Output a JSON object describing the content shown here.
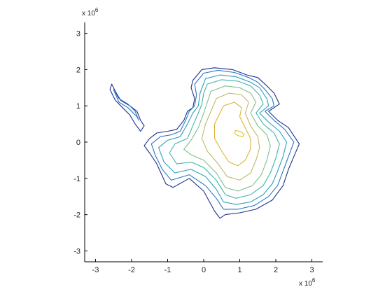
{
  "chart_data": {
    "type": "contour",
    "xlim": [
      -3300000.0,
      3300000.0
    ],
    "ylim": [
      -3300000.0,
      3300000.0
    ],
    "x_ticks": [
      -3000000.0,
      -2000000.0,
      -1000000.0,
      0,
      1000000.0,
      2000000.0,
      3000000.0
    ],
    "y_ticks": [
      -3000000.0,
      -2000000.0,
      -1000000.0,
      0,
      1000000.0,
      2000000.0,
      3000000.0
    ],
    "x_tick_labels": [
      "-3",
      "-2",
      "-1",
      "0",
      "1",
      "2",
      "3"
    ],
    "y_tick_labels": [
      "-3",
      "-2",
      "-1",
      "0",
      "1",
      "2",
      "3"
    ],
    "x_exponent": {
      "base": "x 10",
      "power": "6"
    },
    "y_exponent": {
      "base": "x 10",
      "power": "6"
    },
    "grid": false,
    "contours": [
      {
        "level_index": 0,
        "color": "#1f2f8f",
        "points": [
          [
            -50000.0,
            2000000.0
          ],
          [
            300000.0,
            2050000.0
          ],
          [
            800000.0,
            2000000.0
          ],
          [
            1200000.0,
            1850000.0
          ],
          [
            1500000.0,
            1780000.0
          ],
          [
            1750000.0,
            1550000.0
          ],
          [
            1950000.0,
            1350000.0
          ],
          [
            2100000.0,
            1050000.0
          ],
          [
            1800000.0,
            850000.0
          ],
          [
            2050000.0,
            600000.0
          ],
          [
            2350000.0,
            400000.0
          ],
          [
            2650000.0,
            -50000.0
          ],
          [
            2500000.0,
            -400000.0
          ],
          [
            2350000.0,
            -750000.0
          ],
          [
            2200000.0,
            -1200000.0
          ],
          [
            1900000.0,
            -1600000.0
          ],
          [
            1450000.0,
            -1850000.0
          ],
          [
            1000000.0,
            -1950000.0
          ],
          [
            600000.0,
            -2000000.0
          ],
          [
            450000.0,
            -2100000.0
          ],
          [
            300000.0,
            -1900000.0
          ],
          [
            0.0,
            -1350000.0
          ],
          [
            -400000.0,
            -1000000.0
          ],
          [
            -850000.0,
            -1250000.0
          ],
          [
            -1050000.0,
            -1150000.0
          ],
          [
            -1300000.0,
            -600000.0
          ],
          [
            -1500000.0,
            -300000.0
          ],
          [
            -1650000.0,
            -100000.0
          ],
          [
            -1500000.0,
            100000.0
          ],
          [
            -1300000.0,
            250000.0
          ],
          [
            -1000000.0,
            300000.0
          ],
          [
            -750000.0,
            350000.0
          ],
          [
            -550000.0,
            600000.0
          ],
          [
            -450000.0,
            850000.0
          ],
          [
            -300000.0,
            950000.0
          ],
          [
            -250000.0,
            1200000.0
          ],
          [
            -350000.0,
            1500000.0
          ],
          [
            -300000.0,
            1700000.0
          ],
          [
            -50000.0,
            2000000.0
          ]
        ]
      },
      {
        "level_index": 1,
        "color": "#2c78c0",
        "points": [
          [
            0.0,
            1900000.0
          ],
          [
            400000.0,
            1980000.0
          ],
          [
            850000.0,
            1920000.0
          ],
          [
            1250000.0,
            1780000.0
          ],
          [
            1500000.0,
            1650000.0
          ],
          [
            1700000.0,
            1450000.0
          ],
          [
            1900000.0,
            1200000.0
          ],
          [
            1950000.0,
            1000000.0
          ],
          [
            1700000.0,
            850000.0
          ],
          [
            1950000.0,
            600000.0
          ],
          [
            2250000.0,
            350000.0
          ],
          [
            2500000.0,
            0.0
          ],
          [
            2350000.0,
            -400000.0
          ],
          [
            2200000.0,
            -800000.0
          ],
          [
            2050000.0,
            -1200000.0
          ],
          [
            1800000.0,
            -1500000.0
          ],
          [
            1400000.0,
            -1750000.0
          ],
          [
            950000.0,
            -1850000.0
          ],
          [
            550000.0,
            -1850000.0
          ],
          [
            350000.0,
            -1550000.0
          ],
          [
            50000.0,
            -1200000.0
          ],
          [
            -400000.0,
            -900000.0
          ],
          [
            -900000.0,
            -1050000.0
          ],
          [
            -1150000.0,
            -750000.0
          ],
          [
            -1350000.0,
            -350000.0
          ],
          [
            -1450000.0,
            -50000.0
          ],
          [
            -1200000.0,
            150000.0
          ],
          [
            -900000.0,
            200000.0
          ],
          [
            -650000.0,
            300000.0
          ],
          [
            -500000.0,
            600000.0
          ],
          [
            -400000.0,
            850000.0
          ],
          [
            -250000.0,
            1000000.0
          ],
          [
            -200000.0,
            1300000.0
          ],
          [
            -250000.0,
            1600000.0
          ],
          [
            0.0,
            1900000.0
          ]
        ]
      },
      {
        "level_index": 2,
        "color": "#2aa0c0",
        "points": [
          [
            50000.0,
            1750000.0
          ],
          [
            450000.0,
            1850000.0
          ],
          [
            900000.0,
            1800000.0
          ],
          [
            1300000.0,
            1650000.0
          ],
          [
            1550000.0,
            1500000.0
          ],
          [
            1750000.0,
            1200000.0
          ],
          [
            1800000.0,
            1000000.0
          ],
          [
            1550000.0,
            800000.0
          ],
          [
            1800000.0,
            550000.0
          ],
          [
            2100000.0,
            300000.0
          ],
          [
            2300000.0,
            0.0
          ],
          [
            2200000.0,
            -400000.0
          ],
          [
            2050000.0,
            -800000.0
          ],
          [
            1900000.0,
            -1150000.0
          ],
          [
            1650000.0,
            -1450000.0
          ],
          [
            1300000.0,
            -1650000.0
          ],
          [
            900000.0,
            -1720000.0
          ],
          [
            550000.0,
            -1650000.0
          ],
          [
            350000.0,
            -1300000.0
          ],
          [
            50000.0,
            -950000.0
          ],
          [
            -350000.0,
            -750000.0
          ],
          [
            -800000.0,
            -850000.0
          ],
          [
            -1100000.0,
            -550000.0
          ],
          [
            -1250000.0,
            -150000.0
          ],
          [
            -1000000.0,
            50000.0
          ],
          [
            -650000.0,
            150000.0
          ],
          [
            -450000.0,
            500000.0
          ],
          [
            -300000.0,
            800000.0
          ],
          [
            -150000.0,
            1000000.0
          ],
          [
            -100000.0,
            1350000.0
          ],
          [
            50000.0,
            1750000.0
          ]
        ]
      },
      {
        "level_index": 3,
        "color": "#3fb5a6",
        "points": [
          [
            100000.0,
            1600000.0
          ],
          [
            500000.0,
            1720000.0
          ],
          [
            950000.0,
            1680000.0
          ],
          [
            1300000.0,
            1550000.0
          ],
          [
            1550000.0,
            1300000.0
          ],
          [
            1650000.0,
            1050000.0
          ],
          [
            1450000.0,
            800000.0
          ],
          [
            1650000.0,
            500000.0
          ],
          [
            1950000.0,
            250000.0
          ],
          [
            2100000.0,
            -50000.0
          ],
          [
            2000000.0,
            -450000.0
          ],
          [
            1850000.0,
            -850000.0
          ],
          [
            1650000.0,
            -1200000.0
          ],
          [
            1300000.0,
            -1450000.0
          ],
          [
            900000.0,
            -1550000.0
          ],
          [
            600000.0,
            -1450000.0
          ],
          [
            350000.0,
            -1050000.0
          ],
          [
            0.0,
            -700000.0
          ],
          [
            -350000.0,
            -550000.0
          ],
          [
            -750000.0,
            -600000.0
          ],
          [
            -950000.0,
            -300000.0
          ],
          [
            -800000.0,
            -50000.0
          ],
          [
            -450000.0,
            100000.0
          ],
          [
            -300000.0,
            450000.0
          ],
          [
            -150000.0,
            800000.0
          ],
          [
            -50000.0,
            1050000.0
          ],
          [
            0.0,
            1350000.0
          ],
          [
            100000.0,
            1600000.0
          ]
        ]
      },
      {
        "level_index": 4,
        "color": "#7cc08a",
        "points": [
          [
            200000.0,
            1400000.0
          ],
          [
            600000.0,
            1550000.0
          ],
          [
            1000000.0,
            1500000.0
          ],
          [
            1300000.0,
            1350000.0
          ],
          [
            1450000.0,
            1100000.0
          ],
          [
            1300000.0,
            800000.0
          ],
          [
            1500000.0,
            450000.0
          ],
          [
            1750000.0,
            200000.0
          ],
          [
            1850000.0,
            -100000.0
          ],
          [
            1750000.0,
            -500000.0
          ],
          [
            1600000.0,
            -900000.0
          ],
          [
            1350000.0,
            -1200000.0
          ],
          [
            950000.0,
            -1350000.0
          ],
          [
            600000.0,
            -1250000.0
          ],
          [
            350000.0,
            -850000.0
          ],
          [
            0.0,
            -500000.0
          ],
          [
            -350000.0,
            -350000.0
          ],
          [
            -550000.0,
            -200000.0
          ],
          [
            -350000.0,
            50000.0
          ],
          [
            -150000.0,
            400000.0
          ],
          [
            0.0,
            800000.0
          ],
          [
            100000.0,
            1100000.0
          ],
          [
            200000.0,
            1400000.0
          ]
        ]
      },
      {
        "level_index": 5,
        "color": "#c2b86a",
        "points": [
          [
            350000.0,
            1200000.0
          ],
          [
            700000.0,
            1350000.0
          ],
          [
            1050000.0,
            1300000.0
          ],
          [
            1250000.0,
            1100000.0
          ],
          [
            1150000.0,
            800000.0
          ],
          [
            1300000.0,
            450000.0
          ],
          [
            1500000.0,
            150000.0
          ],
          [
            1550000.0,
            -150000.0
          ],
          [
            1450000.0,
            -500000.0
          ],
          [
            1300000.0,
            -850000.0
          ],
          [
            1000000.0,
            -1050000.0
          ],
          [
            650000.0,
            -950000.0
          ],
          [
            400000.0,
            -600000.0
          ],
          [
            100000.0,
            -250000.0
          ],
          [
            -50000.0,
            100000.0
          ],
          [
            50000.0,
            500000.0
          ],
          [
            200000.0,
            850000.0
          ],
          [
            350000.0,
            1200000.0
          ]
        ]
      },
      {
        "level_index": 6,
        "color": "#e0b23a",
        "points": [
          [
            550000.0,
            1000000.0
          ],
          [
            850000.0,
            1100000.0
          ],
          [
            1050000.0,
            950000.0
          ],
          [
            1000000.0,
            700000.0
          ],
          [
            1150000.0,
            400000.0
          ],
          [
            1300000.0,
            100000.0
          ],
          [
            1300000.0,
            -200000.0
          ],
          [
            1150000.0,
            -500000.0
          ],
          [
            950000.0,
            -650000.0
          ],
          [
            700000.0,
            -550000.0
          ],
          [
            500000.0,
            -250000.0
          ],
          [
            300000.0,
            100000.0
          ],
          [
            300000.0,
            500000.0
          ],
          [
            450000.0,
            800000.0
          ],
          [
            550000.0,
            1000000.0
          ]
        ]
      },
      {
        "level_index": 7,
        "color": "#e8c21a",
        "points": [
          [
            880000.0,
            320000.0
          ],
          [
            1000000.0,
            300000.0
          ],
          [
            1120000.0,
            220000.0
          ],
          [
            1080000.0,
            150000.0
          ],
          [
            950000.0,
            180000.0
          ],
          [
            860000.0,
            240000.0
          ],
          [
            880000.0,
            320000.0
          ]
        ]
      },
      {
        "level_index": 0,
        "color": "#1f2f8f",
        "points": [
          [
            -2550000.0,
            1600000.0
          ],
          [
            -2450000.0,
            1400000.0
          ],
          [
            -2300000.0,
            1150000.0
          ],
          [
            -2050000.0,
            1000000.0
          ],
          [
            -1850000.0,
            850000.0
          ],
          [
            -1750000.0,
            600000.0
          ],
          [
            -1650000.0,
            450000.0
          ],
          [
            -1750000.0,
            300000.0
          ],
          [
            -1900000.0,
            500000.0
          ],
          [
            -2050000.0,
            750000.0
          ],
          [
            -2250000.0,
            950000.0
          ],
          [
            -2450000.0,
            1150000.0
          ],
          [
            -2600000.0,
            1450000.0
          ],
          [
            -2550000.0,
            1600000.0
          ]
        ]
      },
      {
        "level_index": 1,
        "color": "#2c78c0",
        "points": [
          [
            -2500000.0,
            1450000.0
          ],
          [
            -2350000.0,
            1200000.0
          ],
          [
            -2100000.0,
            1050000.0
          ],
          [
            -1900000.0,
            850000.0
          ],
          [
            -1800000.0,
            600000.0
          ],
          [
            -1850000.0,
            700000.0
          ],
          [
            -2100000.0,
            950000.0
          ],
          [
            -2350000.0,
            1100000.0
          ],
          [
            -2500000.0,
            1450000.0
          ]
        ]
      }
    ]
  }
}
